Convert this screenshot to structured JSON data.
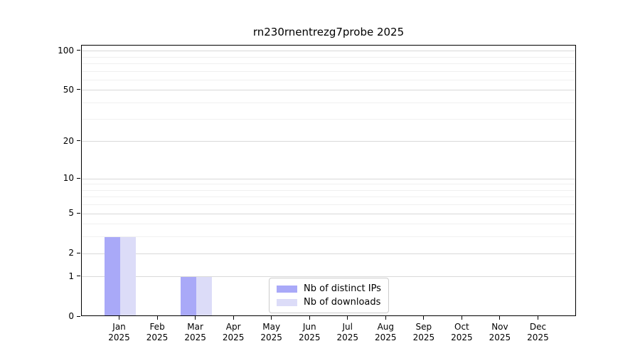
{
  "title": "rn230rnentrezg7probe 2025",
  "chart_data": {
    "type": "bar",
    "title": "rn230rnentrezg7probe 2025",
    "categories": [
      "Jan",
      "Feb",
      "Mar",
      "Apr",
      "May",
      "Jun",
      "Jul",
      "Aug",
      "Sep",
      "Oct",
      "Nov",
      "Dec"
    ],
    "x_tick_second_line": "2025",
    "series": [
      {
        "name": "Nb of distinct IPs",
        "color": "#a9a9f8",
        "values": [
          3,
          0,
          1,
          0,
          0,
          0,
          0,
          0,
          0,
          0,
          0,
          0
        ]
      },
      {
        "name": "Nb of downloads",
        "color": "#dcdcf8",
        "values": [
          3,
          0,
          1,
          0,
          0,
          0,
          0,
          0,
          0,
          0,
          0,
          0
        ]
      }
    ],
    "yscale": "log1p",
    "ylim": [
      0,
      110
    ],
    "y_major_ticks": [
      0,
      1,
      2,
      5,
      10,
      20,
      50,
      100
    ],
    "y_minor_ticks": [
      3,
      4,
      6,
      7,
      8,
      9,
      30,
      40,
      60,
      70,
      80,
      90
    ],
    "grid": "horizontal",
    "legend_position": "inside-bottom-center",
    "colors": {
      "axis": "#000000",
      "grid_major": "#d9d9d9",
      "grid_minor": "#f0f0f0",
      "background": "#ffffff"
    }
  }
}
